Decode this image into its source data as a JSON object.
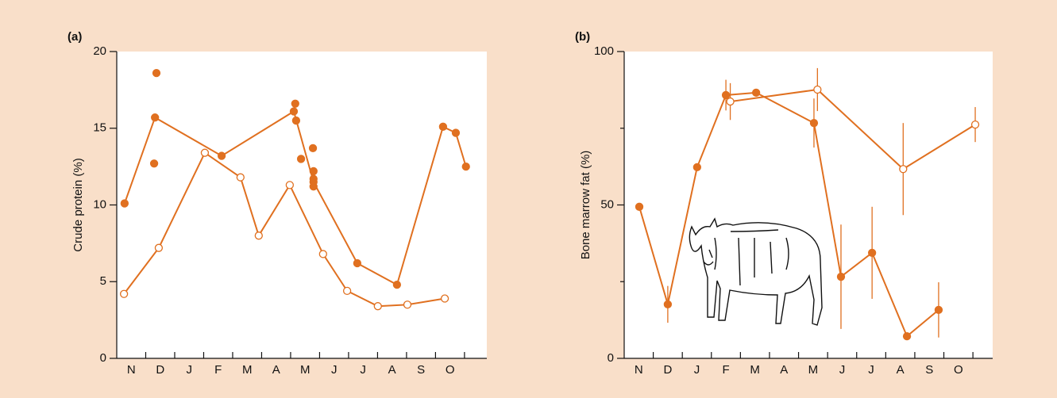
{
  "chart_data": [
    {
      "type": "line",
      "panel_label": "(a)",
      "ylabel": "Crude protein (%)",
      "xlim": [
        0,
        12.77
      ],
      "ylim": [
        0,
        20
      ],
      "yticks": [
        0,
        5,
        10,
        15,
        20
      ],
      "xticks": [
        {
          "value": 0.5,
          "label": "N"
        },
        {
          "value": 1.5,
          "label": "D"
        },
        {
          "value": 2.5,
          "label": "J"
        },
        {
          "value": 3.5,
          "label": "F"
        },
        {
          "value": 4.5,
          "label": "M"
        },
        {
          "value": 5.5,
          "label": "A"
        },
        {
          "value": 6.5,
          "label": "M"
        },
        {
          "value": 7.5,
          "label": "J"
        },
        {
          "value": 8.5,
          "label": "J"
        },
        {
          "value": 9.5,
          "label": "A"
        },
        {
          "value": 10.5,
          "label": "S"
        },
        {
          "value": 11.5,
          "label": "O"
        }
      ],
      "xminorticks": [
        1,
        2,
        3,
        4,
        5,
        6,
        7,
        8,
        9,
        10,
        11,
        12
      ],
      "series": [
        {
          "color": "#e07020",
          "marker": "filled",
          "connected": true,
          "x": [
            0.27,
            1.32,
            3.62,
            6.11,
            6.79,
            8.3,
            9.67,
            11.26,
            11.7,
            12.05
          ],
          "values": [
            10.1,
            15.7,
            13.2,
            16.1,
            11.5,
            6.2,
            4.8,
            15.1,
            14.7,
            12.5
          ]
        },
        {
          "color": "#e07020",
          "marker": "filled",
          "connected": false,
          "x": [
            1.37,
            1.29,
            6.16,
            6.19,
            6.36,
            6.77,
            6.79,
            6.79,
            6.79
          ],
          "values": [
            18.6,
            12.7,
            16.6,
            15.5,
            13.0,
            13.7,
            12.2,
            11.7,
            11.2
          ]
        },
        {
          "color": "#e07020",
          "marker": "open",
          "connected": true,
          "x": [
            0.25,
            1.45,
            3.04,
            4.27,
            4.9,
            5.97,
            7.12,
            7.95,
            9.01,
            10.03,
            11.32
          ],
          "values": [
            4.2,
            7.2,
            13.4,
            11.8,
            8.0,
            11.3,
            6.8,
            4.4,
            3.4,
            3.5,
            3.9
          ]
        }
      ]
    },
    {
      "type": "line",
      "panel_label": "(b)",
      "ylabel": "Bone marrow fat (%)",
      "xlim": [
        0,
        12.68
      ],
      "ylim": [
        0,
        100
      ],
      "yticks": [
        0,
        50,
        100
      ],
      "yminorticks": [
        25,
        75
      ],
      "xticks": [
        {
          "value": 0.5,
          "label": "N"
        },
        {
          "value": 1.5,
          "label": "D"
        },
        {
          "value": 2.5,
          "label": "J"
        },
        {
          "value": 3.5,
          "label": "F"
        },
        {
          "value": 4.5,
          "label": "M"
        },
        {
          "value": 5.5,
          "label": "A"
        },
        {
          "value": 6.5,
          "label": "M"
        },
        {
          "value": 7.5,
          "label": "J"
        },
        {
          "value": 8.5,
          "label": "J"
        },
        {
          "value": 9.5,
          "label": "A"
        },
        {
          "value": 10.5,
          "label": "S"
        },
        {
          "value": 11.5,
          "label": "O"
        }
      ],
      "xminorticks": [
        1,
        2,
        3,
        4,
        5,
        6,
        7,
        8,
        9,
        10,
        11,
        12
      ],
      "series": [
        {
          "color": "#e07020",
          "marker": "filled",
          "connected": true,
          "x": [
            0.52,
            1.5,
            2.51,
            3.5,
            4.54,
            6.53,
            7.46,
            8.53,
            9.73,
            10.82
          ],
          "values": [
            49.4,
            17.6,
            62.3,
            85.8,
            86.6,
            76.7,
            26.6,
            34.4,
            7.2,
            15.8
          ],
          "errors": [
            null,
            6,
            null,
            5,
            null,
            8,
            17,
            15,
            null,
            9
          ]
        },
        {
          "color": "#e07020",
          "marker": "open",
          "connected": true,
          "x": [
            3.65,
            6.65,
            9.6,
            12.08
          ],
          "values": [
            83.7,
            87.6,
            61.7,
            76.2
          ],
          "errors": [
            6,
            7,
            15,
            5.7
          ]
        }
      ]
    }
  ]
}
